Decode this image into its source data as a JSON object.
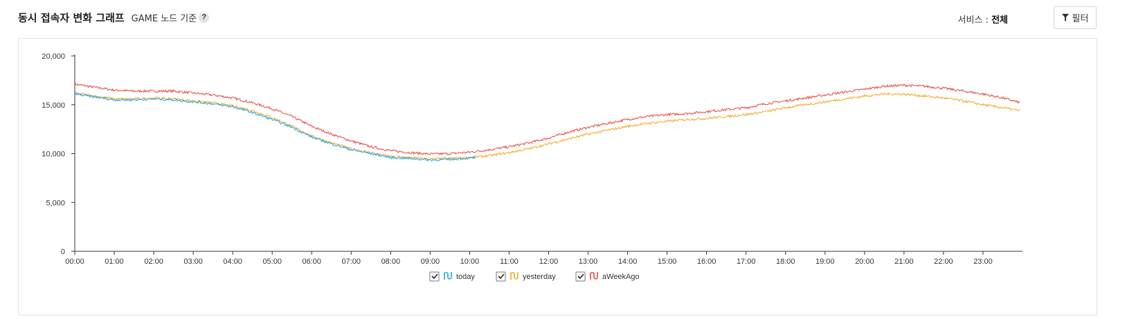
{
  "header": {
    "title": "동시 접속자 변화 그래프",
    "subtitle": "GAME 노드 기준",
    "help_icon": "question-icon",
    "help_text": "?"
  },
  "service": {
    "label": "서비스 : ",
    "value": "전체"
  },
  "filter": {
    "label": "필터",
    "icon": "filter-icon"
  },
  "chart_data": {
    "type": "line",
    "y_ticks": [
      "0",
      "5,000",
      "10,000",
      "15,000",
      "20,000"
    ],
    "ylim": [
      0,
      20000
    ],
    "x_ticks": [
      "00:00",
      "01:00",
      "02:00",
      "03:00",
      "04:00",
      "05:00",
      "06:00",
      "07:00",
      "08:00",
      "09:00",
      "10:00",
      "11:00",
      "12:00",
      "13:00",
      "14:00",
      "15:00",
      "16:00",
      "17:00",
      "18:00",
      "19:00",
      "20:00",
      "21:00",
      "22:00",
      "23:00"
    ],
    "x_unit": "hour",
    "xlim": [
      0,
      24
    ],
    "grid": false,
    "legend_position": "bottom-center",
    "series": [
      {
        "name": "today",
        "color": "#1ea7e1",
        "x": [
          0,
          0.5,
          1,
          1.5,
          2,
          2.5,
          3,
          3.5,
          4,
          4.5,
          5,
          5.5,
          6,
          6.5,
          7,
          7.5,
          8,
          8.5,
          9,
          9.5,
          10,
          10.15
        ],
        "values": [
          16100,
          15800,
          15500,
          15500,
          15600,
          15500,
          15300,
          15100,
          14800,
          14200,
          13500,
          12700,
          11700,
          11000,
          10400,
          10000,
          9600,
          9500,
          9350,
          9400,
          9550,
          9600
        ]
      },
      {
        "name": "yesterday",
        "color": "#f5a623",
        "x": [
          0,
          0.5,
          1,
          1.5,
          2,
          2.5,
          3,
          3.5,
          4,
          4.5,
          5,
          5.5,
          6,
          6.5,
          7,
          7.5,
          8,
          8.5,
          9,
          9.5,
          10,
          10.5,
          11,
          11.5,
          12,
          12.5,
          13,
          13.5,
          14,
          14.5,
          15,
          15.5,
          16,
          16.5,
          17,
          17.5,
          18,
          18.5,
          19,
          19.5,
          20,
          20.5,
          21,
          21.5,
          22,
          22.5,
          23,
          23.5,
          23.95
        ],
        "values": [
          16200,
          15900,
          15600,
          15600,
          15700,
          15600,
          15400,
          15200,
          14900,
          14400,
          13700,
          12800,
          11800,
          11100,
          10500,
          10100,
          9700,
          9600,
          9450,
          9500,
          9600,
          9800,
          10100,
          10500,
          11000,
          11500,
          12000,
          12400,
          12800,
          13100,
          13300,
          13500,
          13600,
          13800,
          14000,
          14300,
          14700,
          15000,
          15300,
          15600,
          15900,
          16100,
          16100,
          15900,
          15700,
          15400,
          15000,
          14700,
          14400
        ]
      },
      {
        "name": "aWeekAgo",
        "color": "#e8453c",
        "x": [
          0,
          0.5,
          1,
          1.5,
          2,
          2.5,
          3,
          3.5,
          4,
          4.5,
          5,
          5.5,
          6,
          6.5,
          7,
          7.5,
          8,
          8.5,
          9,
          9.5,
          10,
          10.5,
          11,
          11.5,
          12,
          12.5,
          13,
          13.5,
          14,
          14.5,
          15,
          15.5,
          16,
          16.5,
          17,
          17.5,
          18,
          18.5,
          19,
          19.5,
          20,
          20.5,
          21,
          21.5,
          22,
          22.5,
          23,
          23.5,
          23.95
        ],
        "values": [
          17100,
          16800,
          16500,
          16400,
          16400,
          16400,
          16200,
          16000,
          15700,
          15200,
          14600,
          13800,
          12800,
          12000,
          11300,
          10700,
          10300,
          10100,
          9950,
          10000,
          10150,
          10400,
          10700,
          11100,
          11600,
          12200,
          12700,
          13100,
          13500,
          13800,
          14000,
          14100,
          14300,
          14500,
          14700,
          15100,
          15400,
          15700,
          16000,
          16300,
          16600,
          16900,
          17000,
          16900,
          16700,
          16400,
          16100,
          15700,
          15200
        ]
      }
    ]
  }
}
